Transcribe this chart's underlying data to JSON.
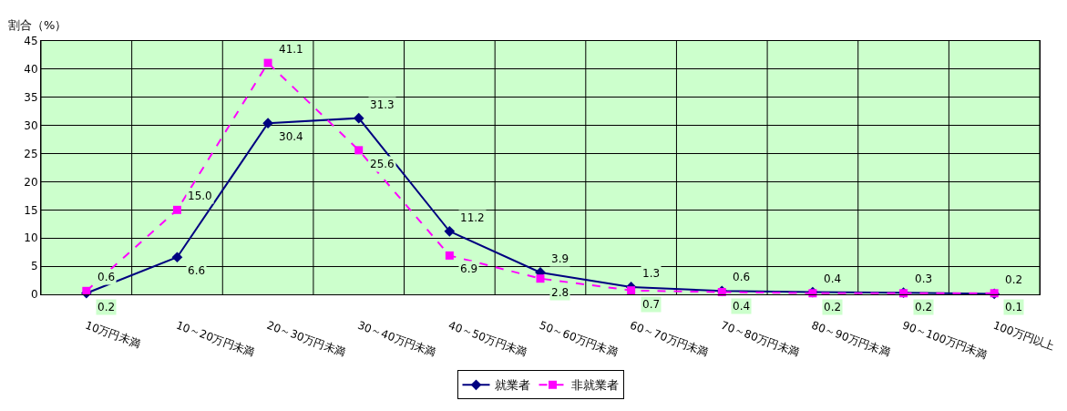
{
  "chart_data": {
    "type": "line",
    "ylabel": "割合（%）",
    "categories": [
      "10万円未満",
      "10～20万円未満",
      "20～30万円未満",
      "30～40万円未満",
      "40～50万円未満",
      "50～60万円未満",
      "60～70万円未満",
      "70～80万円未満",
      "80～90万円未満",
      "90～100万円未満",
      "100万円以上"
    ],
    "series": [
      {
        "name": "就業者",
        "color": "#000080",
        "marker": "diamond",
        "line_style": "solid",
        "values": [
          0.2,
          6.6,
          30.4,
          31.3,
          11.2,
          3.9,
          1.3,
          0.6,
          0.4,
          0.3,
          0.1
        ],
        "value_labels": [
          "0.2",
          "6.6",
          "30.4",
          "31.3",
          "11.2",
          "3.9",
          "1.3",
          "0.6",
          "0.4",
          "0.3",
          "0.1"
        ]
      },
      {
        "name": "非就業者",
        "color": "#ff00ff",
        "marker": "square",
        "line_style": "dashed",
        "values": [
          0.6,
          15.0,
          41.1,
          25.6,
          6.9,
          2.8,
          0.7,
          0.4,
          0.2,
          0.2,
          0.2
        ],
        "value_labels": [
          "0.6",
          "15.0",
          "41.1",
          "25.6",
          "6.9",
          "2.8",
          "0.7",
          "0.4",
          "0.2",
          "0.2",
          "0.2"
        ]
      }
    ],
    "ylim": [
      0,
      45
    ],
    "yticks": [
      0,
      5,
      10,
      15,
      20,
      25,
      30,
      35,
      40,
      45
    ],
    "grid": true,
    "legend": "bottom"
  }
}
